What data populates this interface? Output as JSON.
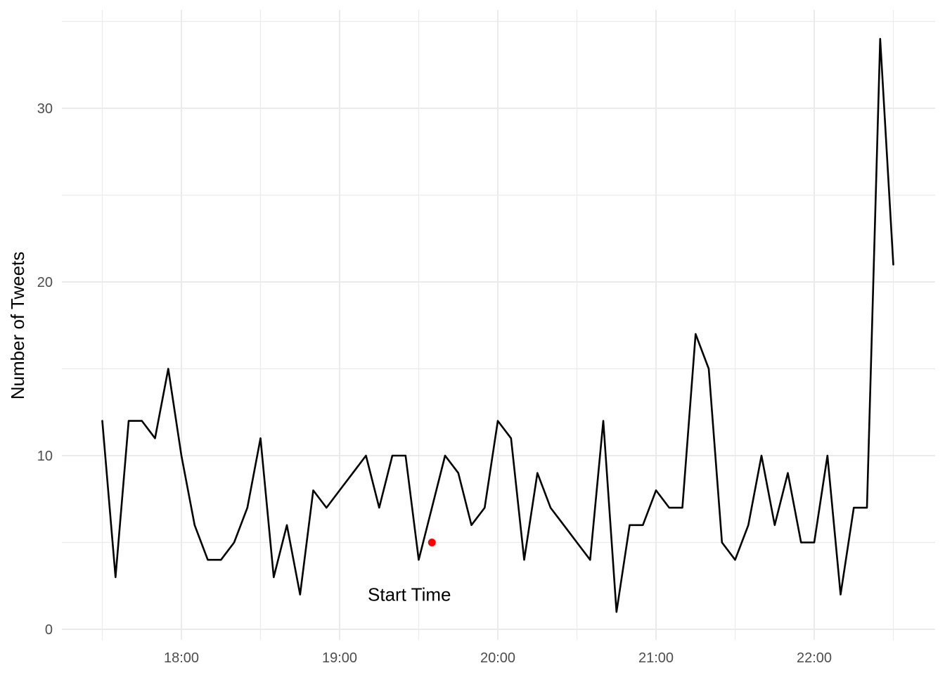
{
  "chart_data": {
    "type": "line",
    "title": "",
    "xlabel": "",
    "ylabel": "Number of Tweets",
    "x_tick_labels": [
      "18:00",
      "19:00",
      "20:00",
      "21:00",
      "22:00"
    ],
    "y_tick_labels": [
      "0",
      "10",
      "20",
      "30"
    ],
    "ylim": [
      0,
      35
    ],
    "grid": true,
    "legend": "none",
    "series": [
      {
        "color": "#000000",
        "x": [
          "17:30",
          "17:35",
          "17:40",
          "17:45",
          "17:50",
          "17:55",
          "18:00",
          "18:05",
          "18:10",
          "18:15",
          "18:20",
          "18:25",
          "18:30",
          "18:35",
          "18:40",
          "18:45",
          "18:50",
          "18:55",
          "19:00",
          "19:05",
          "19:10",
          "19:15",
          "19:20",
          "19:25",
          "19:30",
          "19:35",
          "19:40",
          "19:45",
          "19:50",
          "19:55",
          "20:00",
          "20:05",
          "20:10",
          "20:15",
          "20:20",
          "20:25",
          "20:30",
          "20:35",
          "20:40",
          "20:45",
          "20:50",
          "20:55",
          "21:00",
          "21:05",
          "21:10",
          "21:15",
          "21:20",
          "21:25",
          "21:30",
          "21:35",
          "21:40",
          "21:45",
          "21:50",
          "21:55",
          "22:00",
          "22:05",
          "22:10",
          "22:15",
          "22:20",
          "22:25",
          "22:30"
        ],
        "y": [
          12,
          3,
          12,
          12,
          11,
          15,
          10,
          6,
          4,
          4,
          5,
          7,
          11,
          3,
          6,
          2,
          8,
          7,
          8,
          9,
          10,
          7,
          10,
          10,
          4,
          7,
          10,
          9,
          6,
          7,
          12,
          11,
          4,
          9,
          7,
          6,
          5,
          4,
          12,
          1,
          6,
          6,
          8,
          7,
          7,
          17,
          15,
          5,
          4,
          6,
          10,
          6,
          9,
          5,
          5,
          10,
          2,
          7,
          7,
          34,
          21
        ]
      }
    ],
    "annotations": [
      {
        "label": "Start Time",
        "point": {
          "x": "19:35",
          "y": 5,
          "color": "#ff0000"
        }
      }
    ]
  }
}
